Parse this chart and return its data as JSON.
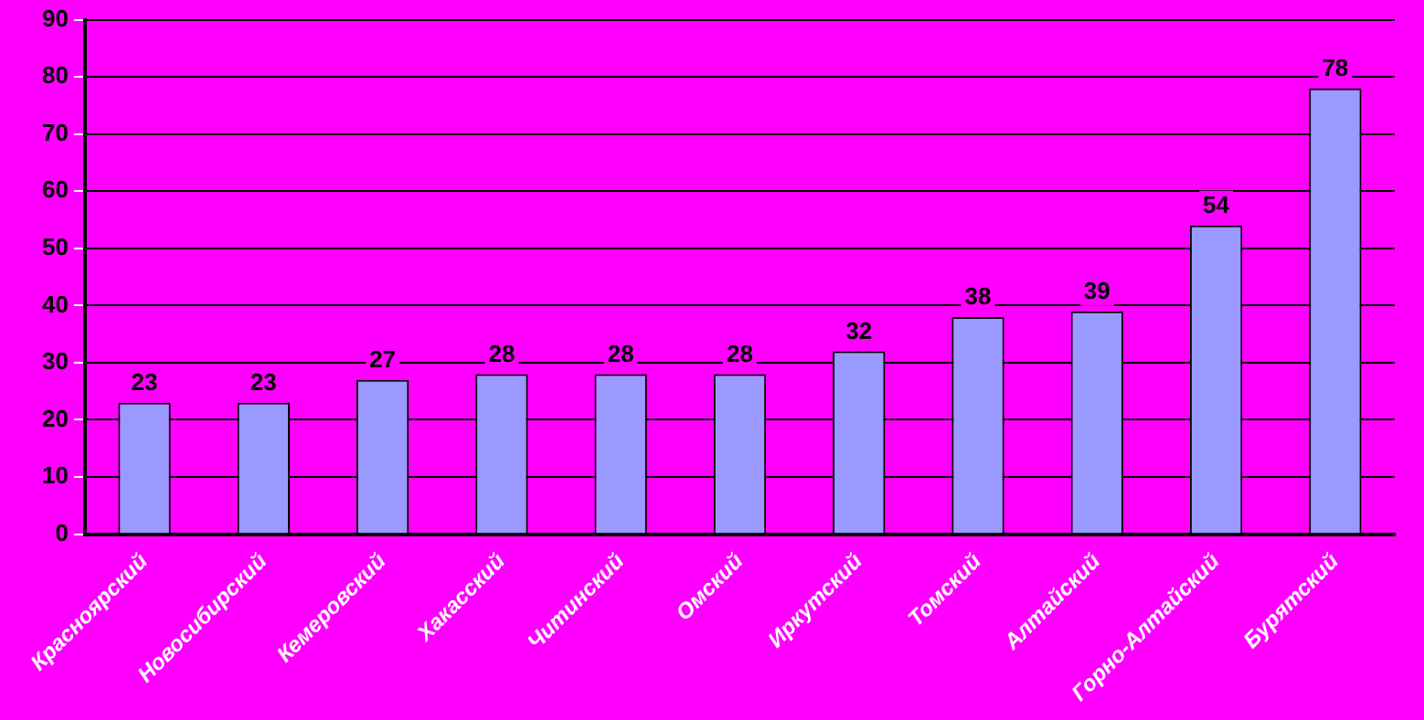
{
  "chart_data": {
    "type": "bar",
    "categories": [
      "Красноярский",
      "Новосибирский",
      "Кемеровский",
      "Хакасский",
      "Читинский",
      "Омский",
      "Иркутский",
      "Томский",
      "Алтайский",
      "Горно-Алтайский",
      "Бурятский"
    ],
    "values": [
      23,
      23,
      27,
      28,
      28,
      28,
      32,
      38,
      39,
      54,
      78
    ],
    "color": "#9999ff",
    "ylim": [
      0,
      90
    ],
    "yticks": [
      0,
      10,
      20,
      30,
      40,
      50,
      60,
      70,
      80,
      90
    ],
    "grid": "y",
    "legend": false,
    "data_labels": true
  }
}
